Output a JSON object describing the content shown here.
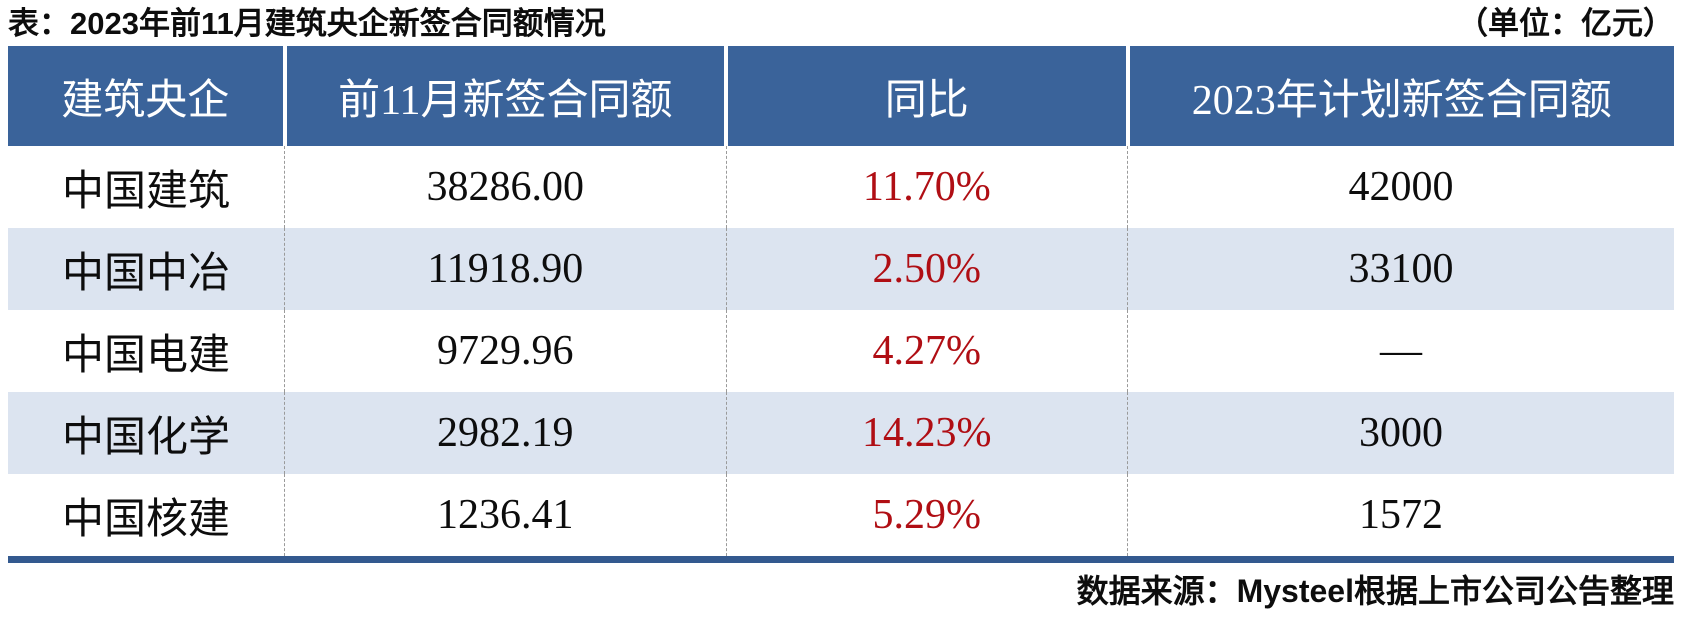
{
  "page": {
    "title": "表：2023年前11月建筑央企新签合同额情况",
    "unit_note": "（单位：亿元）",
    "source_note": "数据来源：Mysteel根据上市公司公告整理"
  },
  "colors": {
    "header_bg": "#3a639a",
    "row_alt_bg": "#dce4f0",
    "percent_red": "#b00e14",
    "bottom_bar": "#33598f"
  },
  "chart_data": {
    "type": "table",
    "title": "表：2023年前11月建筑央企新签合同额情况",
    "unit": "亿元",
    "columns": [
      "建筑央企",
      "前11月新签合同额",
      "同比",
      "2023年计划新签合同额"
    ],
    "rows": [
      [
        "中国建筑",
        "38286.00",
        "11.70%",
        "42000"
      ],
      [
        "中国中冶",
        "11918.90",
        "2.50%",
        "33100"
      ],
      [
        "中国电建",
        "9729.96",
        "4.27%",
        "—"
      ],
      [
        "中国化学",
        "2982.19",
        "14.23%",
        "3000"
      ],
      [
        "中国核建",
        "1236.41",
        "5.29%",
        "1572"
      ]
    ],
    "notes": {
      "percent_column_color": "#b00e14",
      "alternating_row_color": "#dce4f0"
    },
    "source": "数据来源：Mysteel根据上市公司公告整理"
  }
}
